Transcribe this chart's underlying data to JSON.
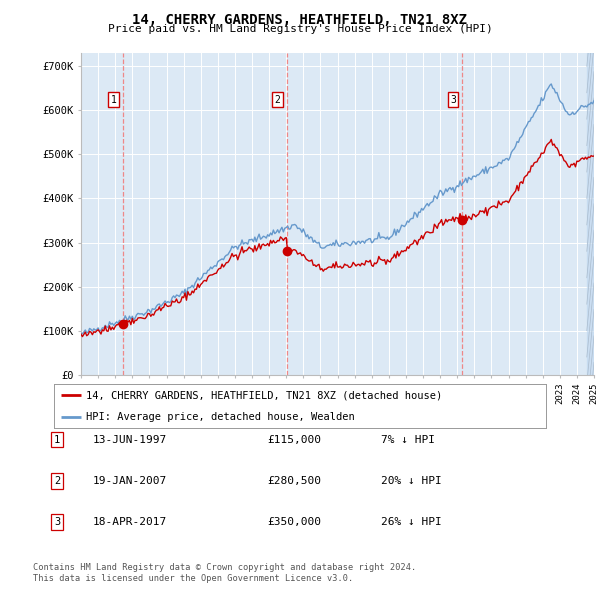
{
  "title": "14, CHERRY GARDENS, HEATHFIELD, TN21 8XZ",
  "subtitle": "Price paid vs. HM Land Registry's House Price Index (HPI)",
  "ylim": [
    0,
    730000
  ],
  "yticks": [
    0,
    100000,
    200000,
    300000,
    400000,
    500000,
    600000,
    700000
  ],
  "ytick_labels": [
    "£0",
    "£100K",
    "£200K",
    "£300K",
    "£400K",
    "£500K",
    "£600K",
    "£700K"
  ],
  "background_color": "#ffffff",
  "plot_bg_color": "#dce9f5",
  "grid_color": "#ffffff",
  "transactions": [
    {
      "num": 1,
      "date": "13-JUN-1997",
      "price": 115000,
      "price_str": "£115,000",
      "pct": "7%",
      "direction": "↓"
    },
    {
      "num": 2,
      "date": "19-JAN-2007",
      "price": 280500,
      "price_str": "£280,500",
      "pct": "20%",
      "direction": "↓"
    },
    {
      "num": 3,
      "date": "18-APR-2017",
      "price": 350000,
      "price_str": "£350,000",
      "pct": "26%",
      "direction": "↓"
    }
  ],
  "transaction_years": [
    1997.45,
    2007.05,
    2017.3
  ],
  "transaction_prices": [
    115000,
    280500,
    350000
  ],
  "legend_red_label": "14, CHERRY GARDENS, HEATHFIELD, TN21 8XZ (detached house)",
  "legend_blue_label": "HPI: Average price, detached house, Wealden",
  "footer": "Contains HM Land Registry data © Crown copyright and database right 2024.\nThis data is licensed under the Open Government Licence v3.0.",
  "hpi_color": "#6699cc",
  "price_color": "#cc0000",
  "marker_color": "#cc0000",
  "dashed_line_color": "#ee8888"
}
